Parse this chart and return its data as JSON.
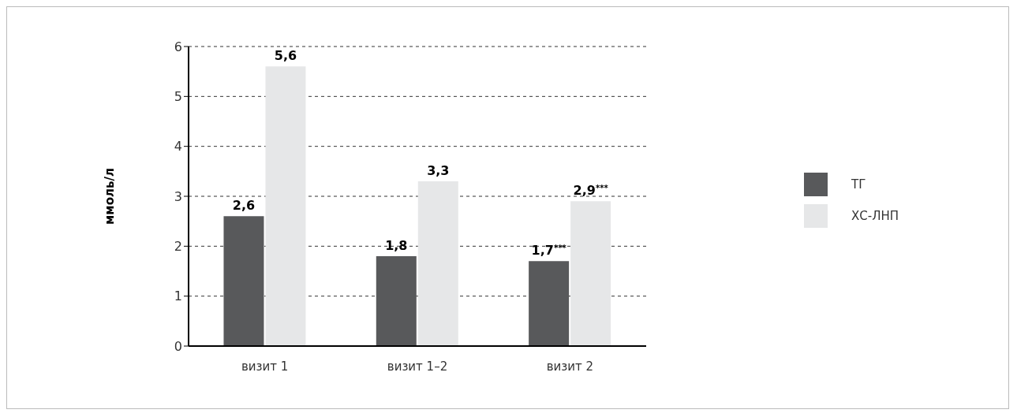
{
  "chart_data": {
    "type": "bar",
    "ylabel": "ммоль/л",
    "categories": [
      "визит 1",
      "визит 1–2",
      "визит 2"
    ],
    "series": [
      {
        "name": "ТГ",
        "color": "#58595b",
        "values": [
          2.6,
          1.8,
          1.7
        ],
        "value_labels": [
          "2,6",
          "1,8",
          "1,7$^{***}$"
        ]
      },
      {
        "name": "ХС-ЛНП",
        "color": "#e6e7e8",
        "values": [
          5.6,
          3.3,
          2.9
        ],
        "value_labels": [
          "5,6",
          "3,3",
          "2,9$^{***}$"
        ]
      }
    ],
    "ylim": [
      0,
      6
    ],
    "yticks": [
      0,
      1,
      2,
      3,
      4,
      5,
      6
    ],
    "grid": "y",
    "legend": "right"
  }
}
